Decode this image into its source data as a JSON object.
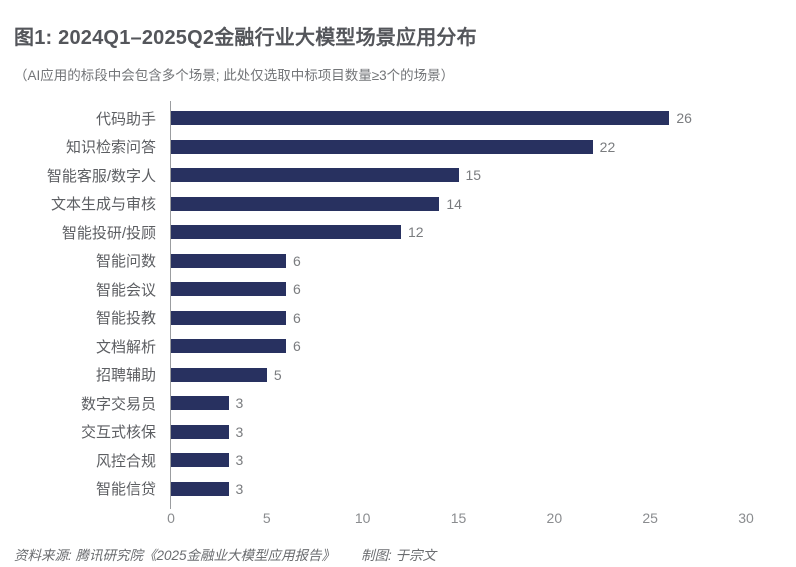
{
  "header": {
    "title": "图1: 2024Q1–2025Q2金融行业大模型场景应用分布",
    "subtitle": "（AI应用的标段中会包含多个场景; 此处仅选取中标项目数量≥3个的场景）"
  },
  "chart_data": {
    "type": "bar",
    "orientation": "horizontal",
    "title": "图1: 2024Q1–2025Q2金融行业大模型场景应用分布",
    "subtitle": "（AI应用的标段中会包含多个场景; 此处仅选取中标项目数量≥3个的场景）",
    "categories": [
      "代码助手",
      "知识检索问答",
      "智能客服/数字人",
      "文本生成与审核",
      "智能投研/投顾",
      "智能问数",
      "智能会议",
      "智能投教",
      "文档解析",
      "招聘辅助",
      "数字交易员",
      "交互式核保",
      "风控合规",
      "智能信贷"
    ],
    "values": [
      26,
      22,
      15,
      14,
      12,
      6,
      6,
      6,
      6,
      5,
      3,
      3,
      3,
      3
    ],
    "value_labels_shown": true,
    "xlabel": "",
    "ylabel": "",
    "xlim": [
      0,
      30
    ],
    "xticks": [
      0,
      5,
      10,
      15,
      20,
      25,
      30
    ],
    "grid": false,
    "legend": "none"
  },
  "footer": {
    "source": "资料来源: 腾讯研究院《2025金融业大模型应用报告》",
    "credit": "制图: 于宗文"
  },
  "colors": {
    "bar": "#283160",
    "title": "#54565b",
    "subtitle": "#737578",
    "category_label": "#5c5e62",
    "value_label": "#7a7c7f",
    "tick_label": "#8a8c8f",
    "axis_line": "#9b9da0",
    "footer": "#6a6c6f",
    "background": "#ffffff"
  }
}
